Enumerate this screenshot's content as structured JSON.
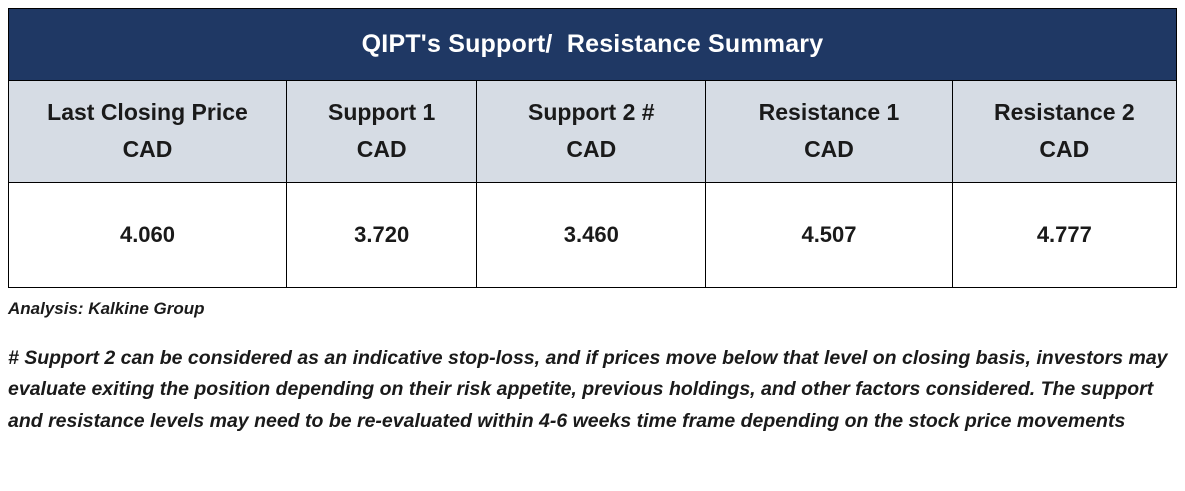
{
  "title": "QIPT's Support/  Resistance Summary",
  "table": {
    "columns": [
      {
        "label": "Last Closing Price",
        "unit": "CAD",
        "value": "4.060"
      },
      {
        "label": "Support 1",
        "unit": "CAD",
        "value": "3.720"
      },
      {
        "label": "Support 2 #",
        "unit": "CAD",
        "value": "3.460"
      },
      {
        "label": "Resistance 1",
        "unit": "CAD",
        "value": "4.507"
      },
      {
        "label": "Resistance 2",
        "unit": "CAD",
        "value": "4.777"
      }
    ]
  },
  "analysis": "Analysis: Kalkine Group",
  "note": "# Support 2 can be considered as an indicative stop-loss, and if prices move below that level on closing basis, investors may evaluate exiting the position depending on their risk appetite, previous holdings, and other factors considered. The support and resistance levels may need to be re-evaluated within 4-6 weeks time frame depending on the stock price movements",
  "colors": {
    "header_bg": "#1F3864",
    "header_text": "#FFFFFF",
    "subheader_bg": "#D6DCE4",
    "border": "#000000"
  },
  "chart_data": {
    "type": "table",
    "title": "QIPT's Support/ Resistance Summary",
    "columns": [
      "Last Closing Price CAD",
      "Support 1 CAD",
      "Support 2 # CAD",
      "Resistance 1 CAD",
      "Resistance 2 CAD"
    ],
    "rows": [
      [
        4.06,
        3.72,
        3.46,
        4.507,
        4.777
      ]
    ],
    "source_note": "Analysis: Kalkine Group"
  }
}
